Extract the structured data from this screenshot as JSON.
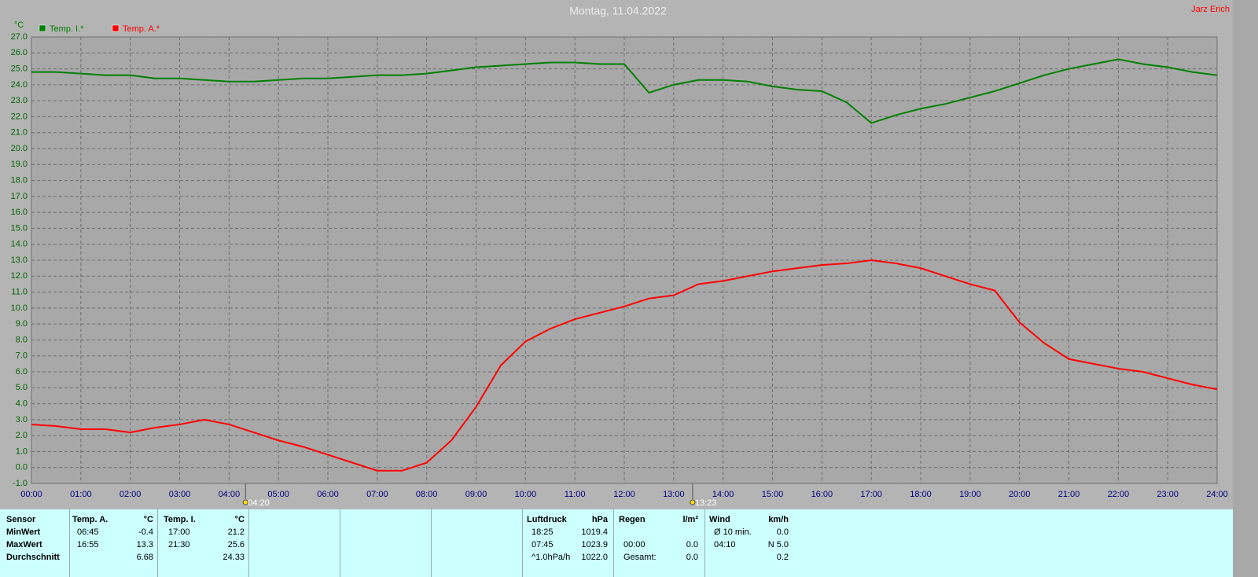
{
  "chart_data": {
    "type": "line",
    "title": "Montag, 11.04.2022",
    "author": "Jarz Erich",
    "y_unit": "°C",
    "x": [
      0,
      0.5,
      1,
      1.5,
      2,
      2.5,
      3,
      3.5,
      4,
      4.5,
      5,
      5.5,
      6,
      6.5,
      7,
      7.5,
      8,
      8.5,
      9,
      9.5,
      10,
      10.5,
      11,
      11.5,
      12,
      12.5,
      13,
      13.5,
      14,
      14.5,
      15,
      15.5,
      16,
      16.5,
      17,
      17.5,
      18,
      18.5,
      19,
      19.5,
      20,
      20.5,
      21,
      21.5,
      22,
      22.5,
      23,
      23.5,
      24
    ],
    "series": [
      {
        "name": "Temp. I.*",
        "color": "#008000",
        "values": [
          24.8,
          24.8,
          24.7,
          24.6,
          24.6,
          24.4,
          24.4,
          24.3,
          24.2,
          24.2,
          24.3,
          24.4,
          24.4,
          24.5,
          24.6,
          24.6,
          24.7,
          24.9,
          25.1,
          25.2,
          25.3,
          25.4,
          25.4,
          25.3,
          25.3,
          23.5,
          24.0,
          24.3,
          24.3,
          24.2,
          23.9,
          23.7,
          23.6,
          22.9,
          21.6,
          22.1,
          22.5,
          22.8,
          23.2,
          23.6,
          24.1,
          24.6,
          25.0,
          25.3,
          25.6,
          25.3,
          25.1,
          24.8,
          24.6
        ]
      },
      {
        "name": "Temp. A.*",
        "color": "#ff0000",
        "values": [
          2.7,
          2.6,
          2.4,
          2.4,
          2.2,
          2.5,
          2.7,
          3.0,
          2.7,
          2.2,
          1.7,
          1.3,
          0.8,
          0.3,
          -0.2,
          -0.2,
          0.3,
          1.7,
          3.8,
          6.4,
          7.9,
          8.7,
          9.3,
          9.7,
          10.1,
          10.6,
          10.8,
          11.5,
          11.7,
          12.0,
          12.3,
          12.5,
          12.7,
          12.8,
          13.0,
          12.8,
          12.5,
          12.0,
          11.5,
          11.1,
          9.1,
          7.8,
          6.8,
          6.5,
          6.2,
          6.0,
          5.6,
          5.2,
          4.9
        ]
      }
    ],
    "xlim": [
      0,
      24
    ],
    "ylim": [
      -1,
      27
    ],
    "grid": true,
    "xticks": [
      {
        "value": 0,
        "label": "00:00"
      },
      {
        "value": 1,
        "label": "01:00"
      },
      {
        "value": 2,
        "label": "02:00"
      },
      {
        "value": 3,
        "label": "03:00"
      },
      {
        "value": 4,
        "label": "04:00"
      },
      {
        "value": 5,
        "label": "05:00"
      },
      {
        "value": 6,
        "label": "06:00"
      },
      {
        "value": 7,
        "label": "07:00"
      },
      {
        "value": 8,
        "label": "08:00"
      },
      {
        "value": 9,
        "label": "09:00"
      },
      {
        "value": 10,
        "label": "10:00"
      },
      {
        "value": 11,
        "label": "11:00"
      },
      {
        "value": 12,
        "label": "12:00"
      },
      {
        "value": 13,
        "label": "13:00"
      },
      {
        "value": 14,
        "label": "14:00"
      },
      {
        "value": 15,
        "label": "15:00"
      },
      {
        "value": 16,
        "label": "16:00"
      },
      {
        "value": 17,
        "label": "17:00"
      },
      {
        "value": 18,
        "label": "18:00"
      },
      {
        "value": 19,
        "label": "19:00"
      },
      {
        "value": 20,
        "label": "20:00"
      },
      {
        "value": 21,
        "label": "21:00"
      },
      {
        "value": 22,
        "label": "22:00"
      },
      {
        "value": 23,
        "label": "23:00"
      },
      {
        "value": 24,
        "label": "24:00"
      }
    ],
    "yticks": [
      {
        "value": -1,
        "label": "-1.0"
      },
      {
        "value": 0,
        "label": "0.0"
      },
      {
        "value": 1,
        "label": "1.0"
      },
      {
        "value": 2,
        "label": "2.0"
      },
      {
        "value": 3,
        "label": "3.0"
      },
      {
        "value": 4,
        "label": "4.0"
      },
      {
        "value": 5,
        "label": "5.0"
      },
      {
        "value": 6,
        "label": "6.0"
      },
      {
        "value": 7,
        "label": "7.0"
      },
      {
        "value": 8,
        "label": "8.0"
      },
      {
        "value": 9,
        "label": "9.0"
      },
      {
        "value": 10,
        "label": "10.0"
      },
      {
        "value": 11,
        "label": "11.0"
      },
      {
        "value": 12,
        "label": "12.0"
      },
      {
        "value": 13,
        "label": "13.0"
      },
      {
        "value": 14,
        "label": "14.0"
      },
      {
        "value": 15,
        "label": "15.0"
      },
      {
        "value": 16,
        "label": "16.0"
      },
      {
        "value": 17,
        "label": "17.0"
      },
      {
        "value": 18,
        "label": "18.0"
      },
      {
        "value": 19,
        "label": "19.0"
      },
      {
        "value": 20,
        "label": "20.0"
      },
      {
        "value": 21,
        "label": "21.0"
      },
      {
        "value": 22,
        "label": "22.0"
      },
      {
        "value": 23,
        "label": "23.0"
      },
      {
        "value": 24,
        "label": "24.0"
      },
      {
        "value": 25,
        "label": "25.0"
      },
      {
        "value": 26,
        "label": "26.0"
      },
      {
        "value": 27,
        "label": "27.0"
      }
    ],
    "sun_markers": [
      {
        "value": 4.333,
        "label": "04:20"
      },
      {
        "value": 13.383,
        "label": "13:23"
      }
    ]
  },
  "stats_table": {
    "groups": [
      {
        "header": [
          "Sensor"
        ],
        "rows": [
          [
            "MinWert"
          ],
          [
            "MaxWert"
          ],
          [
            "Durchschnitt"
          ]
        ]
      },
      {
        "header": [
          "Temp. A.",
          "°C"
        ],
        "rows": [
          [
            "06:45",
            "-0.4"
          ],
          [
            "16:55",
            "13.3"
          ],
          [
            null,
            "6.68"
          ]
        ]
      },
      {
        "header": [
          "Temp. I.",
          "°C"
        ],
        "rows": [
          [
            "17:00",
            "21.2"
          ],
          [
            "21:30",
            "25.6"
          ],
          [
            null,
            "24.33"
          ]
        ]
      },
      {
        "header": [
          "Luftdruck",
          "hPa"
        ],
        "rows": [
          [
            "18:25",
            "1019.4"
          ],
          [
            "07:45",
            "1023.9"
          ],
          [
            "^1.0hPa/h",
            "1022.0"
          ]
        ]
      },
      {
        "header": [
          "Regen",
          "l/m²"
        ],
        "rows": [
          [
            null,
            null
          ],
          [
            "00:00",
            "0.0"
          ],
          [
            "Gesamt:",
            "0.0"
          ]
        ]
      },
      {
        "header": [
          "Wind",
          "km/h"
        ],
        "rows": [
          [
            "Ø 10 min.",
            "0.0"
          ],
          [
            "04:10",
            "N 5.0"
          ],
          [
            null,
            "0.2"
          ]
        ]
      }
    ]
  }
}
